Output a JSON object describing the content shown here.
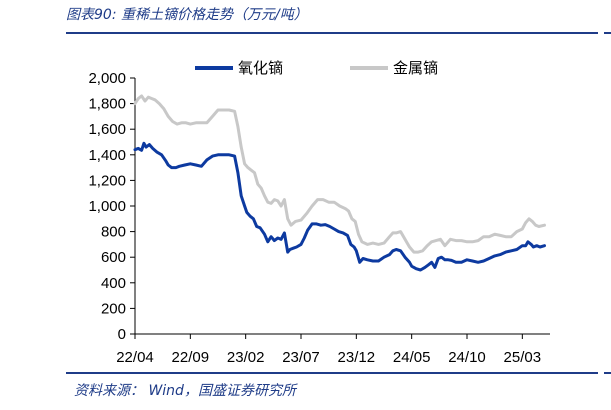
{
  "header": {
    "title": "图表90:  重稀土镝价格走势（万元/吨）"
  },
  "source": {
    "text": "资料来源： Wind，国盛证券研究所"
  },
  "colors": {
    "accent": "#1f3c88",
    "series_blue": "#0d3aa0",
    "series_gray": "#c8c8c8"
  },
  "chart_data": {
    "type": "line",
    "title": "重稀土镝价格走势（万元/吨）",
    "xlabel": "",
    "ylabel": "",
    "ylim": [
      0,
      2000
    ],
    "yticks": [
      0,
      200,
      400,
      600,
      800,
      1000,
      1200,
      1400,
      1600,
      1800,
      2000
    ],
    "ytick_labels": [
      "0",
      "200",
      "400",
      "600",
      "800",
      "1,000",
      "1,200",
      "1,400",
      "1,600",
      "1,800",
      "2,000"
    ],
    "xlim": [
      0,
      37.5
    ],
    "xticks": [
      0,
      5,
      10,
      15,
      20,
      25,
      30,
      35
    ],
    "xtick_labels": [
      "22/04",
      "22/09",
      "23/02",
      "23/07",
      "23/12",
      "24/05",
      "24/10",
      "25/03"
    ],
    "x_unit": "months since 2022-04",
    "grid": false,
    "legend_position": "top",
    "series": [
      {
        "name": "氧化镝",
        "color": "#0d3aa0",
        "x": [
          0,
          0.3,
          0.6,
          0.8,
          1.0,
          1.3,
          1.6,
          2.0,
          2.4,
          2.8,
          3.0,
          3.3,
          3.7,
          4.0,
          4.5,
          5.0,
          5.5,
          6.0,
          6.5,
          7.0,
          7.5,
          8.0,
          8.5,
          9.0,
          9.3,
          9.6,
          9.9,
          10.1,
          10.4,
          10.7,
          11.0,
          11.3,
          11.7,
          12.0,
          12.3,
          12.6,
          12.9,
          13.2,
          13.5,
          13.8,
          14.0,
          14.3,
          14.6,
          15.0,
          15.3,
          15.6,
          16.0,
          16.4,
          16.8,
          17.2,
          17.6,
          18.0,
          18.4,
          18.8,
          19.2,
          19.5,
          19.8,
          20.0,
          20.3,
          20.6,
          21.0,
          21.5,
          22.0,
          22.5,
          23.0,
          23.3,
          23.6,
          24.0,
          24.4,
          24.8,
          25.0,
          25.4,
          25.8,
          26.2,
          26.5,
          26.8,
          27.1,
          27.4,
          27.7,
          28.0,
          28.3,
          28.6,
          29.0,
          29.5,
          30.0,
          30.5,
          31.0,
          31.5,
          32.0,
          32.5,
          33.0,
          33.5,
          34.0,
          34.5,
          35.0,
          35.3,
          35.5,
          35.8,
          36.0,
          36.3,
          36.6,
          37.0
        ],
        "values": [
          1440,
          1450,
          1435,
          1490,
          1460,
          1480,
          1450,
          1420,
          1400,
          1350,
          1320,
          1300,
          1300,
          1310,
          1320,
          1330,
          1320,
          1310,
          1360,
          1390,
          1400,
          1400,
          1400,
          1390,
          1260,
          1080,
          1000,
          950,
          920,
          900,
          840,
          830,
          780,
          720,
          760,
          730,
          750,
          740,
          790,
          640,
          660,
          670,
          680,
          700,
          750,
          810,
          860,
          860,
          850,
          855,
          840,
          820,
          800,
          790,
          770,
          700,
          680,
          650,
          560,
          590,
          580,
          570,
          570,
          600,
          620,
          650,
          660,
          650,
          600,
          560,
          530,
          510,
          500,
          520,
          540,
          560,
          520,
          590,
          600,
          580,
          580,
          575,
          560,
          560,
          580,
          570,
          560,
          570,
          590,
          610,
          620,
          640,
          650,
          660,
          690,
          690,
          720,
          700,
          680,
          690,
          680,
          690
        ]
      },
      {
        "name": "金属镝",
        "color": "#c8c8c8",
        "x": [
          0,
          0.3,
          0.6,
          0.9,
          1.2,
          1.5,
          1.8,
          2.2,
          2.6,
          3.0,
          3.4,
          3.8,
          4.2,
          4.6,
          5.0,
          5.5,
          6.0,
          6.5,
          7.0,
          7.5,
          8.0,
          8.5,
          9.0,
          9.3,
          9.6,
          9.9,
          10.2,
          10.5,
          10.8,
          11.1,
          11.4,
          11.7,
          12.0,
          12.3,
          12.6,
          12.9,
          13.2,
          13.5,
          13.8,
          14.1,
          14.5,
          15.0,
          15.5,
          16.0,
          16.5,
          17.0,
          17.5,
          18.0,
          18.5,
          19.0,
          19.3,
          19.6,
          19.9,
          20.2,
          20.5,
          21.0,
          21.5,
          22.0,
          22.5,
          23.0,
          23.3,
          23.6,
          24.0,
          24.4,
          24.8,
          25.2,
          25.6,
          26.0,
          26.4,
          26.8,
          27.2,
          27.6,
          28.0,
          28.5,
          29.0,
          29.5,
          30.0,
          30.5,
          31.0,
          31.5,
          32.0,
          32.5,
          33.0,
          33.5,
          34.0,
          34.5,
          35.0,
          35.3,
          35.6,
          35.9,
          36.2,
          36.5,
          37.0
        ],
        "values": [
          1800,
          1840,
          1860,
          1820,
          1850,
          1840,
          1830,
          1800,
          1760,
          1700,
          1660,
          1640,
          1650,
          1650,
          1640,
          1650,
          1650,
          1650,
          1700,
          1750,
          1750,
          1750,
          1740,
          1620,
          1460,
          1330,
          1300,
          1280,
          1260,
          1170,
          1140,
          1080,
          1030,
          1020,
          1050,
          1040,
          1000,
          1050,
          900,
          850,
          880,
          890,
          940,
          1000,
          1050,
          1050,
          1030,
          1030,
          1000,
          980,
          960,
          900,
          880,
          780,
          720,
          700,
          710,
          700,
          710,
          760,
          790,
          790,
          800,
          740,
          680,
          640,
          640,
          650,
          690,
          720,
          730,
          740,
          690,
          740,
          730,
          730,
          720,
          720,
          730,
          760,
          760,
          780,
          770,
          760,
          760,
          800,
          820,
          870,
          900,
          880,
          850,
          840,
          850
        ]
      }
    ]
  }
}
